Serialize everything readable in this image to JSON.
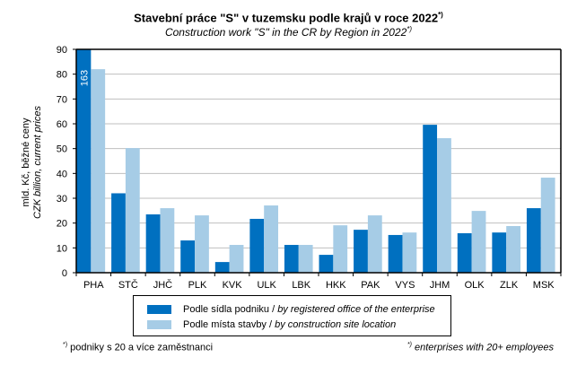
{
  "chart_data": {
    "type": "bar",
    "title": "Stavební práce \"S\" v tuzemsku podle krajů v roce 2022",
    "title_note": "*)",
    "subtitle": "Construction work \"S\" in the CR by Region in 2022",
    "subtitle_note": "*)",
    "ylabel_cz": "mld. Kč, běžné ceny",
    "ylabel_en": "CZK billion, current prices",
    "xlabel": "",
    "ylim": [
      0,
      90
    ],
    "yticks": [
      "0",
      "10",
      "20",
      "30",
      "40",
      "50",
      "60",
      "70",
      "80",
      "90"
    ],
    "grid": true,
    "categories": [
      "PHA",
      "STČ",
      "JHČ",
      "PLK",
      "KVK",
      "ULK",
      "LBK",
      "HKK",
      "PAK",
      "VYS",
      "JHM",
      "OLK",
      "ZLK",
      "MSK"
    ],
    "series": [
      {
        "name_cz": "Podle sídla podniku",
        "name_en": "by registered office of the enterprise",
        "color": "#0070c0",
        "values": [
          163,
          32,
          23.5,
          13,
          4.3,
          21.7,
          11.2,
          7.2,
          17.3,
          15.2,
          59.6,
          15.9,
          16.2,
          26
        ]
      },
      {
        "name_cz": "Podle místa stavby",
        "name_en": "by construction site location",
        "color": "#a6cce6",
        "values": [
          82,
          50.2,
          26,
          23.1,
          11.2,
          27.1,
          11.2,
          19.1,
          23.1,
          16.2,
          54.2,
          24.9,
          18.8,
          38.3
        ]
      }
    ],
    "annotations": [
      {
        "category": "PHA",
        "series": 0,
        "text": "163",
        "note": "bar exceeds axis maximum"
      }
    ],
    "legend_position": "bottom"
  },
  "legend": {
    "separator": " / "
  },
  "footnotes": {
    "left_mark": "*)",
    "left_text": " podniky s 20 a více zaměstnanci",
    "right_mark": "*)",
    "right_text": " enterprises with 20+ employees"
  }
}
